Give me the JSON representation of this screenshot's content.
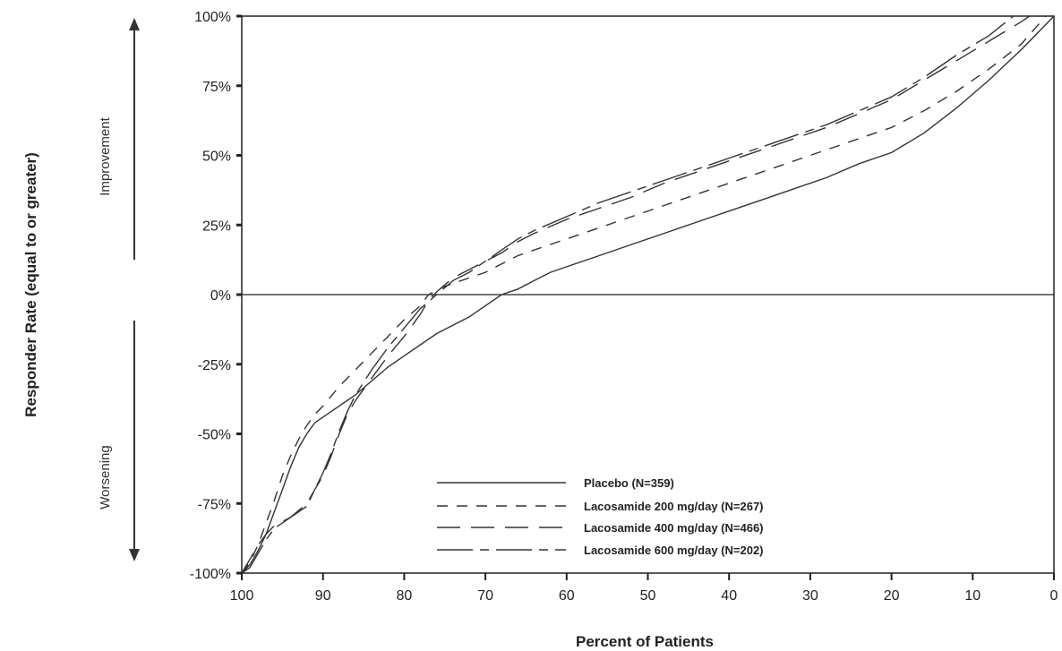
{
  "chart_data": {
    "type": "line",
    "title": "",
    "xlabel": "Percent of Patients",
    "ylabel": "Responder Rate (equal to or greater)",
    "xlim": [
      100,
      0
    ],
    "ylim": [
      -100,
      100
    ],
    "x_ticks": [
      "100",
      "90",
      "80",
      "70",
      "60",
      "50",
      "40",
      "30",
      "20",
      "10",
      "0"
    ],
    "y_ticks": [
      "100%",
      "75%",
      "50%",
      "25%",
      "0%",
      "-25%",
      "-50%",
      "-75%",
      "-100%"
    ],
    "annotations": {
      "improvement": "Improvement",
      "worsening": "Worsening"
    },
    "legend_placement": "bottom-center",
    "grid": false,
    "series": [
      {
        "name": "Placebo",
        "n_label": "(N=359)",
        "dash": "solid",
        "points": [
          [
            100,
            -100
          ],
          [
            99,
            -97
          ],
          [
            98,
            -92
          ],
          [
            97,
            -86
          ],
          [
            96,
            -78
          ],
          [
            95,
            -70
          ],
          [
            94,
            -62
          ],
          [
            93,
            -55
          ],
          [
            92,
            -50
          ],
          [
            91,
            -46
          ],
          [
            90,
            -44
          ],
          [
            88,
            -40
          ],
          [
            86,
            -36
          ],
          [
            84,
            -31
          ],
          [
            82,
            -26
          ],
          [
            80,
            -22
          ],
          [
            78,
            -18
          ],
          [
            76,
            -14
          ],
          [
            74,
            -11
          ],
          [
            72,
            -8
          ],
          [
            70,
            -4
          ],
          [
            68,
            0
          ],
          [
            66,
            2
          ],
          [
            64,
            5
          ],
          [
            62,
            8
          ],
          [
            60,
            10
          ],
          [
            56,
            14
          ],
          [
            52,
            18
          ],
          [
            48,
            22
          ],
          [
            44,
            26
          ],
          [
            40,
            30
          ],
          [
            36,
            34
          ],
          [
            32,
            38
          ],
          [
            28,
            42
          ],
          [
            24,
            47
          ],
          [
            20,
            51
          ],
          [
            16,
            58
          ],
          [
            12,
            67
          ],
          [
            8,
            77
          ],
          [
            4,
            88
          ],
          [
            0,
            100
          ]
        ]
      },
      {
        "name": "Lacosamide 200 mg/day",
        "n_label": "(N=267)",
        "dash": "12,10",
        "points": [
          [
            100,
            -100
          ],
          [
            99,
            -96
          ],
          [
            98,
            -90
          ],
          [
            97,
            -82
          ],
          [
            96,
            -74
          ],
          [
            95,
            -65
          ],
          [
            94,
            -58
          ],
          [
            93,
            -52
          ],
          [
            92,
            -47
          ],
          [
            91,
            -43
          ],
          [
            90,
            -40
          ],
          [
            88,
            -33
          ],
          [
            86,
            -27
          ],
          [
            84,
            -21
          ],
          [
            82,
            -15
          ],
          [
            80,
            -9
          ],
          [
            78,
            -4
          ],
          [
            77,
            0
          ],
          [
            75,
            3
          ],
          [
            72,
            6
          ],
          [
            70,
            8
          ],
          [
            68,
            11
          ],
          [
            66,
            14
          ],
          [
            64,
            16
          ],
          [
            60,
            20
          ],
          [
            56,
            24
          ],
          [
            52,
            28
          ],
          [
            48,
            32
          ],
          [
            44,
            36
          ],
          [
            40,
            40
          ],
          [
            36,
            44
          ],
          [
            32,
            48
          ],
          [
            28,
            52
          ],
          [
            24,
            56
          ],
          [
            20,
            60
          ],
          [
            16,
            66
          ],
          [
            12,
            73
          ],
          [
            8,
            81
          ],
          [
            4,
            90
          ],
          [
            1,
            100
          ]
        ]
      },
      {
        "name": "Lacosamide 400 mg/day",
        "n_label": "(N=466)",
        "dash": "26,12",
        "points": [
          [
            100,
            -100
          ],
          [
            99,
            -95
          ],
          [
            98,
            -90
          ],
          [
            97,
            -86
          ],
          [
            96,
            -83
          ],
          [
            94,
            -80
          ],
          [
            92,
            -75
          ],
          [
            91,
            -70
          ],
          [
            90,
            -65
          ],
          [
            89,
            -58
          ],
          [
            88,
            -50
          ],
          [
            87,
            -43
          ],
          [
            86,
            -38
          ],
          [
            85,
            -34
          ],
          [
            84,
            -30
          ],
          [
            82,
            -22
          ],
          [
            80,
            -15
          ],
          [
            78,
            -7
          ],
          [
            77,
            -2
          ],
          [
            76,
            1
          ],
          [
            74,
            6
          ],
          [
            72,
            9
          ],
          [
            70,
            12
          ],
          [
            68,
            15
          ],
          [
            66,
            19
          ],
          [
            64,
            22
          ],
          [
            60,
            27
          ],
          [
            56,
            31
          ],
          [
            52,
            35
          ],
          [
            48,
            40
          ],
          [
            44,
            44
          ],
          [
            40,
            48
          ],
          [
            36,
            52
          ],
          [
            32,
            56
          ],
          [
            28,
            60
          ],
          [
            24,
            65
          ],
          [
            20,
            70
          ],
          [
            16,
            77
          ],
          [
            12,
            84
          ],
          [
            8,
            91
          ],
          [
            4,
            98
          ],
          [
            3,
            100
          ]
        ]
      },
      {
        "name": "Lacosamide 600 mg/day",
        "n_label": "(N=202)",
        "dash": "40,8,10,8",
        "points": [
          [
            100,
            -100
          ],
          [
            99,
            -98
          ],
          [
            98,
            -93
          ],
          [
            97,
            -88
          ],
          [
            96,
            -84
          ],
          [
            94,
            -80
          ],
          [
            92,
            -76
          ],
          [
            91,
            -70
          ],
          [
            90,
            -64
          ],
          [
            89,
            -57
          ],
          [
            88,
            -49
          ],
          [
            87,
            -42
          ],
          [
            86,
            -36
          ],
          [
            84,
            -27
          ],
          [
            82,
            -19
          ],
          [
            80,
            -12
          ],
          [
            78,
            -5
          ],
          [
            76,
            0
          ],
          [
            74,
            5
          ],
          [
            72,
            8
          ],
          [
            70,
            12
          ],
          [
            68,
            16
          ],
          [
            66,
            20
          ],
          [
            64,
            23
          ],
          [
            60,
            28
          ],
          [
            56,
            33
          ],
          [
            52,
            37
          ],
          [
            48,
            41
          ],
          [
            44,
            45
          ],
          [
            40,
            49
          ],
          [
            36,
            53
          ],
          [
            32,
            57
          ],
          [
            28,
            61
          ],
          [
            24,
            66
          ],
          [
            20,
            71
          ],
          [
            16,
            78
          ],
          [
            12,
            86
          ],
          [
            8,
            93
          ],
          [
            5,
            100
          ]
        ]
      }
    ]
  }
}
